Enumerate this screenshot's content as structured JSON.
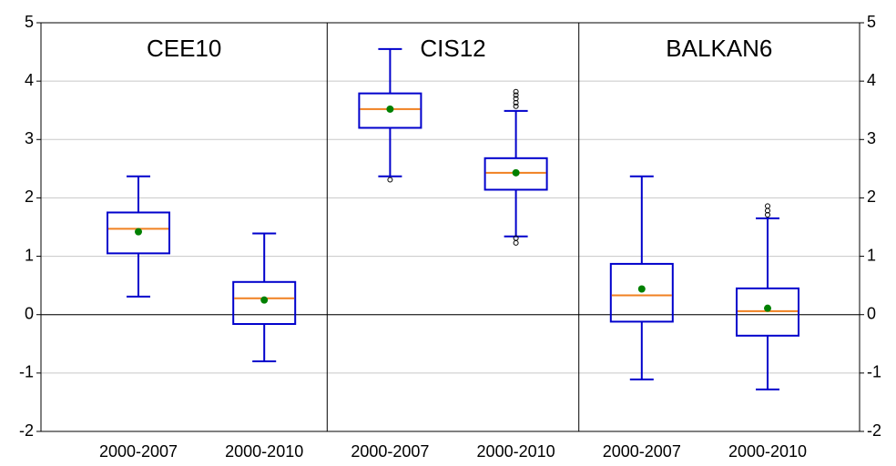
{
  "chart_data": {
    "type": "box",
    "groups": [
      "CEE10",
      "CIS12",
      "BALKAN6"
    ],
    "categories": [
      "2000-2007",
      "2000-2010",
      "2000-2007",
      "2000-2010",
      "2000-2007",
      "2000-2010"
    ],
    "boxes": [
      {
        "whisker_low": 0.31,
        "q1": 1.05,
        "median": 1.47,
        "q3": 1.75,
        "whisker_high": 2.37,
        "mean": 1.42
      },
      {
        "whisker_low": -0.8,
        "q1": -0.16,
        "median": 0.28,
        "q3": 0.56,
        "whisker_high": 1.39,
        "mean": 0.25
      },
      {
        "whisker_low": 2.37,
        "q1": 3.2,
        "median": 3.52,
        "q3": 3.79,
        "whisker_high": 4.55,
        "mean": 3.52,
        "outliers": [
          2.31
        ]
      },
      {
        "whisker_low": 1.34,
        "q1": 2.14,
        "median": 2.43,
        "q3": 2.68,
        "whisker_high": 3.49,
        "mean": 2.43,
        "outliers": [
          3.82,
          3.76,
          3.7,
          3.63,
          3.57,
          1.31,
          1.23
        ]
      },
      {
        "whisker_low": -1.11,
        "q1": -0.12,
        "median": 0.33,
        "q3": 0.87,
        "whisker_high": 2.37,
        "mean": 0.44
      },
      {
        "whisker_low": -1.28,
        "q1": -0.36,
        "median": 0.06,
        "q3": 0.45,
        "whisker_high": 1.65,
        "mean": 0.11,
        "outliers": [
          1.86,
          1.78,
          1.71
        ]
      }
    ],
    "box_color": "#0000cc",
    "median_color": "#f08020",
    "mean_color": "#008000",
    "ylim": [
      -2,
      5
    ],
    "yticks": [
      -2,
      -1,
      0,
      1,
      2,
      3,
      4,
      5
    ],
    "y2lim": [
      -2,
      5
    ],
    "y2ticks": [
      -2,
      -1,
      0,
      1,
      2,
      3,
      4,
      5
    ],
    "grid": true
  }
}
